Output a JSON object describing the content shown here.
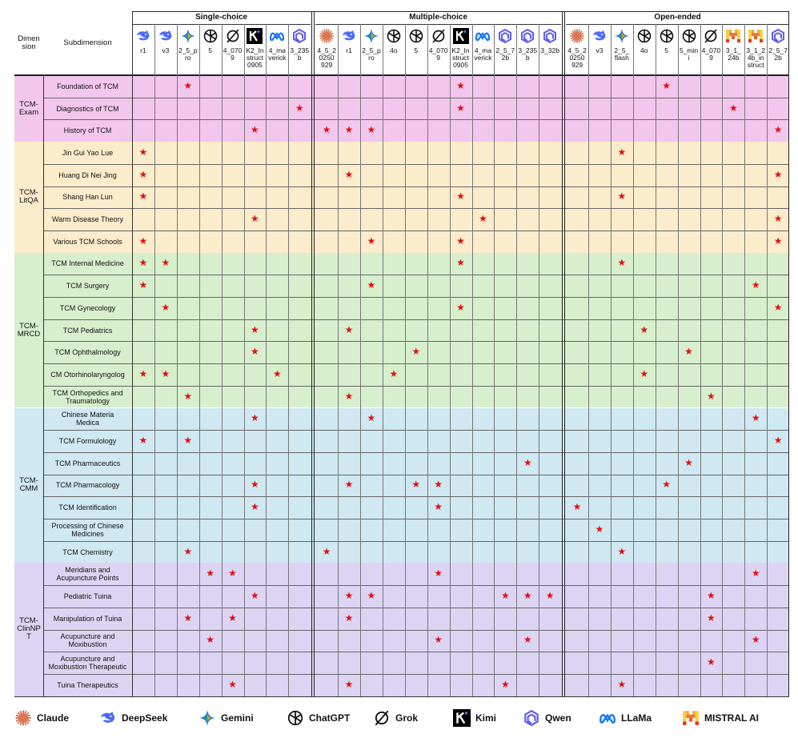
{
  "header": {
    "col_dimension": "Dimen\nsion",
    "col_subdimension": "Subdimension",
    "groups": [
      "Single-choice",
      "Multiple-choice",
      "Open-ended"
    ]
  },
  "groups": [
    {
      "name": "Single-choice",
      "models": [
        {
          "icon": "deepseek",
          "label": "r1"
        },
        {
          "icon": "deepseek",
          "label": "v3"
        },
        {
          "icon": "gemini",
          "label": "2_5_p\nro"
        },
        {
          "icon": "chatgpt",
          "label": "5"
        },
        {
          "icon": "grok",
          "label": "4_070\n9"
        },
        {
          "icon": "kimi",
          "label": "K2_In\nstruct\n0905"
        },
        {
          "icon": "llama",
          "label": "4_ma\nverick"
        },
        {
          "icon": "qwen",
          "label": "3_235\nb"
        }
      ]
    },
    {
      "name": "Multiple-choice",
      "models": [
        {
          "icon": "claude",
          "label": "4_5_2\n0250\n929"
        },
        {
          "icon": "deepseek",
          "label": "r1"
        },
        {
          "icon": "gemini",
          "label": "2_5_p\nro"
        },
        {
          "icon": "chatgpt",
          "label": "4o"
        },
        {
          "icon": "chatgpt",
          "label": "5"
        },
        {
          "icon": "grok",
          "label": "4_070\n9"
        },
        {
          "icon": "kimi",
          "label": "K2_In\nstruct\n0905"
        },
        {
          "icon": "llama",
          "label": "4_ma\nverick"
        },
        {
          "icon": "qwen",
          "label": "2_5_7\n2b"
        },
        {
          "icon": "qwen",
          "label": "3_235\nb"
        },
        {
          "icon": "qwen",
          "label": "3_32b"
        }
      ]
    },
    {
      "name": "Open-ended",
      "models": [
        {
          "icon": "claude",
          "label": "4_5_2\n0250\n929"
        },
        {
          "icon": "deepseek",
          "label": "v3"
        },
        {
          "icon": "gemini",
          "label": "2_5_\nflash"
        },
        {
          "icon": "chatgpt",
          "label": "4o"
        },
        {
          "icon": "chatgpt",
          "label": "5"
        },
        {
          "icon": "chatgpt",
          "label": "5_min\ni"
        },
        {
          "icon": "grok",
          "label": "4_070\n9"
        },
        {
          "icon": "mistral",
          "label": "3_1_\n24b"
        },
        {
          "icon": "mistral",
          "label": "3_1_2\n4b_in\nstruct"
        },
        {
          "icon": "qwen",
          "label": "2_5_7\n2b"
        }
      ]
    }
  ],
  "dimensions": [
    {
      "name": "TCM-\nExam",
      "color": "#f3c6ee",
      "rows": [
        {
          "label": "Foundation of TCM",
          "stars": [
            [
              2
            ],
            [
              6
            ],
            [
              4
            ]
          ]
        },
        {
          "label": "Diagnostics of TCM",
          "stars": [
            [
              7
            ],
            [
              6
            ],
            [
              7
            ]
          ]
        },
        {
          "label": "History of TCM",
          "stars": [
            [
              5
            ],
            [
              0,
              1,
              2
            ],
            [
              9
            ]
          ]
        }
      ]
    },
    {
      "name": "TCM-\nLitQA",
      "color": "#fbeccb",
      "rows": [
        {
          "label": "Jin Gui Yao Lue",
          "stars": [
            [
              0
            ],
            [],
            [
              2
            ]
          ]
        },
        {
          "label": "Huang Di Nei Jing",
          "stars": [
            [
              0
            ],
            [
              1
            ],
            [
              9
            ]
          ]
        },
        {
          "label": "Shang Han Lun",
          "stars": [
            [
              0
            ],
            [
              6
            ],
            [
              2
            ]
          ]
        },
        {
          "label": "Warm Disease Theory",
          "stars": [
            [
              5
            ],
            [
              7
            ],
            [
              9
            ]
          ]
        },
        {
          "label": "Various TCM Schools",
          "stars": [
            [
              0
            ],
            [
              2,
              6
            ],
            [
              9
            ]
          ]
        }
      ]
    },
    {
      "name": "TCM-\nMRCD",
      "color": "#d7efcd",
      "rows": [
        {
          "label": "TCM Internal Medicine",
          "stars": [
            [
              0,
              1
            ],
            [
              6
            ],
            [
              2
            ]
          ]
        },
        {
          "label": "TCM Surgery",
          "stars": [
            [
              0
            ],
            [
              2
            ],
            [
              8
            ]
          ]
        },
        {
          "label": "TCM Gynecology",
          "stars": [
            [
              1
            ],
            [
              6
            ],
            [
              9
            ]
          ]
        },
        {
          "label": "TCM Pediatrics",
          "stars": [
            [
              5
            ],
            [
              1
            ],
            [
              3
            ]
          ]
        },
        {
          "label": "TCM Ophthalmology",
          "stars": [
            [
              5
            ],
            [
              4
            ],
            [
              5
            ]
          ]
        },
        {
          "label": "CM Otorhinolaryngolog",
          "stars": [
            [
              0,
              1,
              6
            ],
            [
              3
            ],
            [
              3
            ]
          ]
        },
        {
          "label": "TCM Orthopedics and\nTraumatology",
          "stars": [
            [
              2
            ],
            [
              1
            ],
            [
              6
            ]
          ]
        }
      ]
    },
    {
      "name": "TCM-\nCMM",
      "color": "#cfe8f1",
      "rows": [
        {
          "label": "Chinese Materia\nMedica",
          "stars": [
            [
              5
            ],
            [
              2
            ],
            [
              8
            ]
          ]
        },
        {
          "label": "TCM Formulology",
          "stars": [
            [
              0,
              2
            ],
            [],
            [
              9
            ]
          ]
        },
        {
          "label": "TCM Pharmaceutics",
          "stars": [
            [],
            [
              9
            ],
            [
              5
            ]
          ]
        },
        {
          "label": "TCM Pharmacology",
          "stars": [
            [
              5
            ],
            [
              1,
              4,
              5
            ],
            [
              4
            ]
          ]
        },
        {
          "label": "TCM Identification",
          "stars": [
            [
              5
            ],
            [
              5
            ],
            [
              0
            ]
          ]
        },
        {
          "label": "Processing of Chinese\nMedicines",
          "stars": [
            [],
            [],
            [
              1
            ]
          ]
        },
        {
          "label": "TCM Chemistry",
          "stars": [
            [
              2
            ],
            [
              0
            ],
            [
              2
            ]
          ]
        }
      ]
    },
    {
      "name": "TCM-\nClinNP\nT",
      "color": "#ddd4f4",
      "rows": [
        {
          "label": "Meridians and\nAcupuncture Points",
          "stars": [
            [
              3,
              4
            ],
            [
              5
            ],
            [
              8
            ]
          ]
        },
        {
          "label": "Pediatric Tuina",
          "stars": [
            [
              5
            ],
            [
              1,
              2,
              8,
              9,
              10
            ],
            [
              6
            ]
          ]
        },
        {
          "label": "Manipulation of Tuina",
          "stars": [
            [
              2,
              4
            ],
            [
              1
            ],
            [
              6
            ]
          ]
        },
        {
          "label": "Acupuncture and\nMoxibustion",
          "stars": [
            [
              3
            ],
            [
              5,
              9
            ],
            [
              8
            ]
          ]
        },
        {
          "label": "Acupuncture and\nMoxibustion Therapeutic",
          "stars": [
            [],
            [],
            [
              6
            ]
          ]
        },
        {
          "label": "Tuina Therapeutics",
          "stars": [
            [
              4
            ],
            [
              1,
              8
            ],
            [
              2
            ]
          ]
        }
      ]
    }
  ],
  "legend": [
    {
      "icon": "claude",
      "label": "Claude"
    },
    {
      "icon": "deepseek",
      "label": "DeepSeek"
    },
    {
      "icon": "gemini",
      "label": "Gemini"
    },
    {
      "icon": "chatgpt",
      "label": "ChatGPT"
    },
    {
      "icon": "grok",
      "label": "Grok"
    },
    {
      "icon": "kimi",
      "label": "Kimi"
    },
    {
      "icon": "qwen",
      "label": "Qwen"
    },
    {
      "icon": "llama",
      "label": "LLaMa"
    },
    {
      "icon": "mistral",
      "label": "MISTRAL AI"
    }
  ],
  "colors": {
    "star": "#e01010",
    "grid": "#555555"
  }
}
